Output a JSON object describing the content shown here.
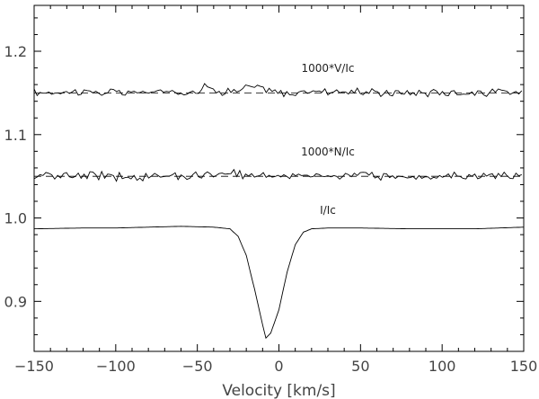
{
  "chart_data": {
    "type": "line",
    "xlabel": "Velocity [km/s]",
    "ylabel": "",
    "xlim": [
      -150,
      150
    ],
    "ylim": [
      0.84,
      1.255
    ],
    "x_ticks": [
      -150,
      -100,
      -50,
      0,
      50,
      100,
      150
    ],
    "y_ticks": [
      0.9,
      1.0,
      1.1,
      1.2
    ],
    "y_tick_labels": [
      "0.9",
      "1.0",
      "1.1",
      "1.2"
    ],
    "annotations": [
      {
        "text": "1000*V/Ic",
        "x": 30,
        "y": 1.175
      },
      {
        "text": "1000*N/Ic",
        "x": 30,
        "y": 1.075
      },
      {
        "text": "I/Ic",
        "x": 30,
        "y": 1.005
      }
    ],
    "series": [
      {
        "key": "stokes_v",
        "style": "noisy",
        "x": [
          -150,
          -125,
          -100,
          -75,
          -50,
          -45,
          -40,
          -25,
          -20,
          -10,
          0,
          10,
          25,
          50,
          75,
          100,
          125,
          150
        ],
        "y": [
          1.15,
          1.152,
          1.15,
          1.151,
          1.152,
          1.158,
          1.153,
          1.152,
          1.157,
          1.155,
          1.15,
          1.149,
          1.153,
          1.151,
          1.15,
          1.151,
          1.15,
          1.151
        ],
        "noise_amplitude": 0.006
      },
      {
        "key": "null_n",
        "style": "noisy",
        "x": [
          -150,
          -125,
          -100,
          -75,
          -50,
          -25,
          0,
          25,
          50,
          75,
          100,
          125,
          150
        ],
        "y": [
          1.05,
          1.051,
          1.05,
          1.05,
          1.051,
          1.053,
          1.05,
          1.052,
          1.05,
          1.051,
          1.05,
          1.052,
          1.05
        ],
        "noise_amplitude": 0.006
      },
      {
        "key": "stokes_i",
        "style": "smooth",
        "x": [
          -150,
          -120,
          -100,
          -80,
          -60,
          -40,
          -30,
          -25,
          -20,
          -15,
          -10,
          -8,
          -5,
          0,
          5,
          10,
          15,
          20,
          30,
          50,
          80,
          100,
          120,
          150
        ],
        "y": [
          0.987,
          0.988,
          0.988,
          0.989,
          0.99,
          0.989,
          0.987,
          0.978,
          0.955,
          0.915,
          0.872,
          0.856,
          0.862,
          0.89,
          0.935,
          0.968,
          0.983,
          0.987,
          0.988,
          0.988,
          0.987,
          0.987,
          0.987,
          0.989
        ]
      }
    ],
    "reference_lines": [
      {
        "y": 1.15,
        "style": "dashed"
      },
      {
        "y": 1.05,
        "style": "dashed"
      }
    ],
    "grid": false,
    "legend": "none"
  }
}
